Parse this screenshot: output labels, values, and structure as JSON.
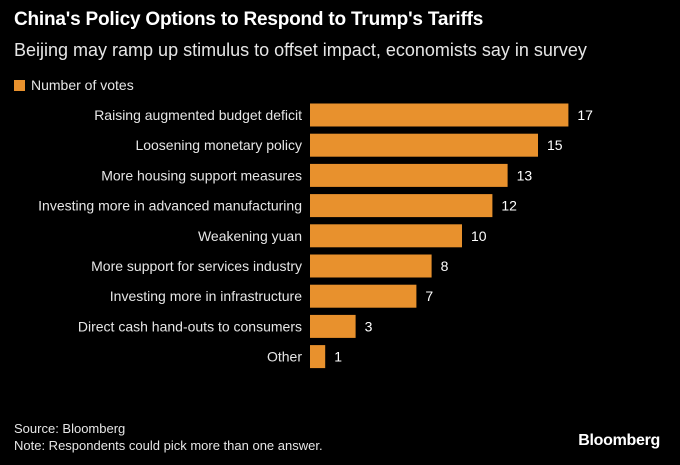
{
  "title": "China's Policy Options to Respond to Trump's Tariffs",
  "subtitle": "Beijing may ramp up stimulus to offset impact, economists say in survey",
  "legend": {
    "label": "Number of votes",
    "color": "#e8912d"
  },
  "footer": {
    "source": "Source: Bloomberg",
    "note": "Note: Respondents could pick more than one answer.",
    "brand": "Bloomberg"
  },
  "chart_data": {
    "type": "bar",
    "orientation": "horizontal",
    "title": "China's Policy Options to Respond to Trump's Tariffs",
    "subtitle": "Beijing may ramp up stimulus to offset impact, economists say in survey",
    "xlabel": "",
    "ylabel": "",
    "xlim": [
      0,
      17
    ],
    "grid": false,
    "legend_position": "top-left",
    "categories": [
      "Raising augmented budget deficit",
      "Loosening monetary policy",
      "More housing support measures",
      "Investing more in advanced manufacturing",
      "Weakening yuan",
      "More support for services industry",
      "Investing more in infrastructure",
      "Direct cash hand-outs to consumers",
      "Other"
    ],
    "series": [
      {
        "name": "Number of votes",
        "color": "#e8912d",
        "values": [
          17,
          15,
          13,
          12,
          10,
          8,
          7,
          3,
          1
        ]
      }
    ]
  }
}
